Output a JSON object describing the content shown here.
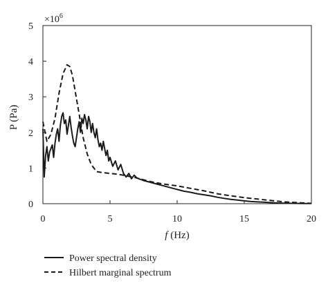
{
  "chart_data": {
    "type": "line",
    "xlabel_italic": "f",
    "xlabel_rest": " (Hz)",
    "ylabel": "P (Pa)",
    "multiplier_base": "×10",
    "multiplier_exp": "6",
    "xlim": [
      0,
      20
    ],
    "ylim": [
      0,
      5
    ],
    "x_ticks": [
      0,
      5,
      10,
      15,
      20
    ],
    "y_ticks": [
      0,
      1,
      2,
      3,
      4,
      5
    ],
    "grid": false,
    "legend_position": "bottom",
    "series": [
      {
        "name": "Power spectral density",
        "style": "solid",
        "color": "#1a1a1a",
        "x": [
          0,
          0.1,
          0.2,
          0.3,
          0.4,
          0.5,
          0.6,
          0.7,
          0.8,
          0.9,
          1.0,
          1.1,
          1.2,
          1.3,
          1.4,
          1.5,
          1.6,
          1.7,
          1.8,
          1.9,
          2.0,
          2.1,
          2.2,
          2.3,
          2.4,
          2.5,
          2.6,
          2.7,
          2.8,
          2.9,
          3.0,
          3.1,
          3.2,
          3.3,
          3.4,
          3.5,
          3.6,
          3.7,
          3.8,
          3.9,
          4.0,
          4.1,
          4.2,
          4.3,
          4.4,
          4.5,
          4.6,
          4.7,
          4.8,
          4.9,
          5.0,
          5.2,
          5.4,
          5.6,
          5.8,
          6.0,
          6.2,
          6.4,
          6.6,
          6.8,
          7.0,
          7.5,
          8.0,
          8.5,
          9.0,
          9.5,
          10.0,
          10.5,
          11.0,
          11.5,
          12.0,
          12.5,
          13.0,
          13.5,
          14.0,
          14.5,
          15.0,
          15.5,
          16.0,
          16.5,
          17.0,
          17.5,
          18.0,
          18.5,
          19.0,
          19.5,
          20.0
        ],
        "values": [
          2.1,
          0.75,
          1.35,
          1.6,
          1.2,
          1.45,
          1.55,
          1.65,
          1.3,
          1.7,
          1.95,
          2.1,
          1.75,
          2.2,
          2.45,
          2.55,
          2.25,
          2.35,
          1.95,
          2.2,
          2.45,
          2.15,
          1.9,
          1.7,
          1.6,
          1.85,
          2.1,
          2.3,
          2.0,
          2.4,
          2.25,
          2.5,
          2.35,
          2.1,
          2.45,
          2.3,
          2.0,
          2.25,
          2.0,
          1.85,
          2.1,
          1.8,
          1.6,
          1.7,
          1.5,
          1.75,
          1.55,
          1.35,
          1.5,
          1.2,
          1.3,
          1.05,
          1.2,
          0.95,
          1.1,
          0.85,
          0.75,
          0.85,
          0.7,
          0.8,
          0.72,
          0.65,
          0.6,
          0.55,
          0.5,
          0.45,
          0.4,
          0.35,
          0.32,
          0.28,
          0.25,
          0.22,
          0.18,
          0.15,
          0.12,
          0.1,
          0.08,
          0.06,
          0.05,
          0.04,
          0.03,
          0.02,
          0.015,
          0.01,
          0.008,
          0.005,
          0.003
        ]
      },
      {
        "name": "Hilbert marginal spectrum",
        "style": "dashed",
        "color": "#1a1a1a",
        "x": [
          0,
          0.3,
          0.6,
          0.9,
          1.2,
          1.5,
          1.8,
          2.0,
          2.2,
          2.5,
          2.8,
          3.0,
          3.3,
          3.6,
          4.0,
          4.5,
          5.0,
          5.5,
          6.0,
          7.0,
          8.0,
          9.0,
          10.0,
          11.0,
          12.0,
          13.0,
          14.0,
          15.0,
          16.0,
          17.0,
          18.0,
          19.0,
          20.0
        ],
        "values": [
          2.3,
          1.75,
          1.95,
          2.4,
          3.1,
          3.65,
          3.9,
          3.85,
          3.6,
          2.95,
          2.3,
          1.85,
          1.4,
          1.1,
          0.9,
          0.87,
          0.85,
          0.83,
          0.8,
          0.72,
          0.62,
          0.55,
          0.5,
          0.43,
          0.36,
          0.28,
          0.22,
          0.17,
          0.13,
          0.09,
          0.05,
          0.03,
          0.01
        ]
      }
    ]
  }
}
